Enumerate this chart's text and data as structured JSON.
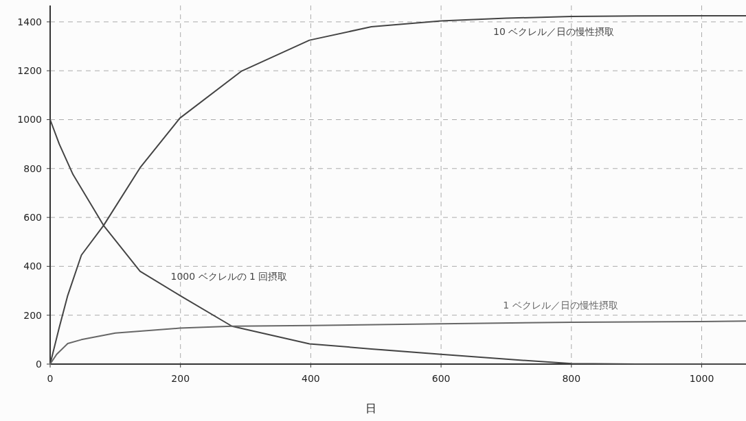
{
  "chart_data": {
    "type": "line",
    "xlabel": "日",
    "xlim": [
      0,
      1068
    ],
    "ylim": [
      0,
      1467
    ],
    "xticks": [
      0,
      200,
      400,
      600,
      800,
      1000
    ],
    "yticks": [
      0,
      200,
      400,
      600,
      800,
      1000,
      1200,
      1400
    ],
    "grid": true,
    "marker": "none",
    "line_style": "solid",
    "series": [
      {
        "name": "10 ベクレル／日の慢性摂取",
        "color": "#444444",
        "x": [
          0,
          14,
          27,
          48,
          82,
          138,
          199,
          294,
          398,
          493,
          600,
          700,
          800,
          900,
          1000,
          1068
        ],
        "values": [
          0,
          150,
          281,
          446,
          567,
          803,
          1006,
          1199,
          1325,
          1380,
          1404,
          1415,
          1422,
          1424,
          1425,
          1425
        ]
      },
      {
        "name": "1000 ベクレルの 1 回摂取",
        "color": "#444444",
        "x": [
          0,
          14,
          35,
          82,
          138,
          199,
          279,
          398,
          493,
          600,
          700,
          800,
          900,
          1000,
          1068
        ],
        "values": [
          1000,
          900,
          776,
          567,
          380,
          281,
          155,
          83,
          62,
          40,
          20,
          2,
          0,
          0,
          0
        ]
      },
      {
        "name": "1 ベクレル／日の慢性摂取",
        "color": "#666666",
        "x": [
          0,
          10,
          27,
          48,
          100,
          199,
          279,
          400,
          600,
          800,
          1000,
          1068
        ],
        "values": [
          0,
          40,
          84,
          100,
          127,
          147,
          155,
          158,
          165,
          171,
          174,
          176
        ]
      }
    ]
  }
}
